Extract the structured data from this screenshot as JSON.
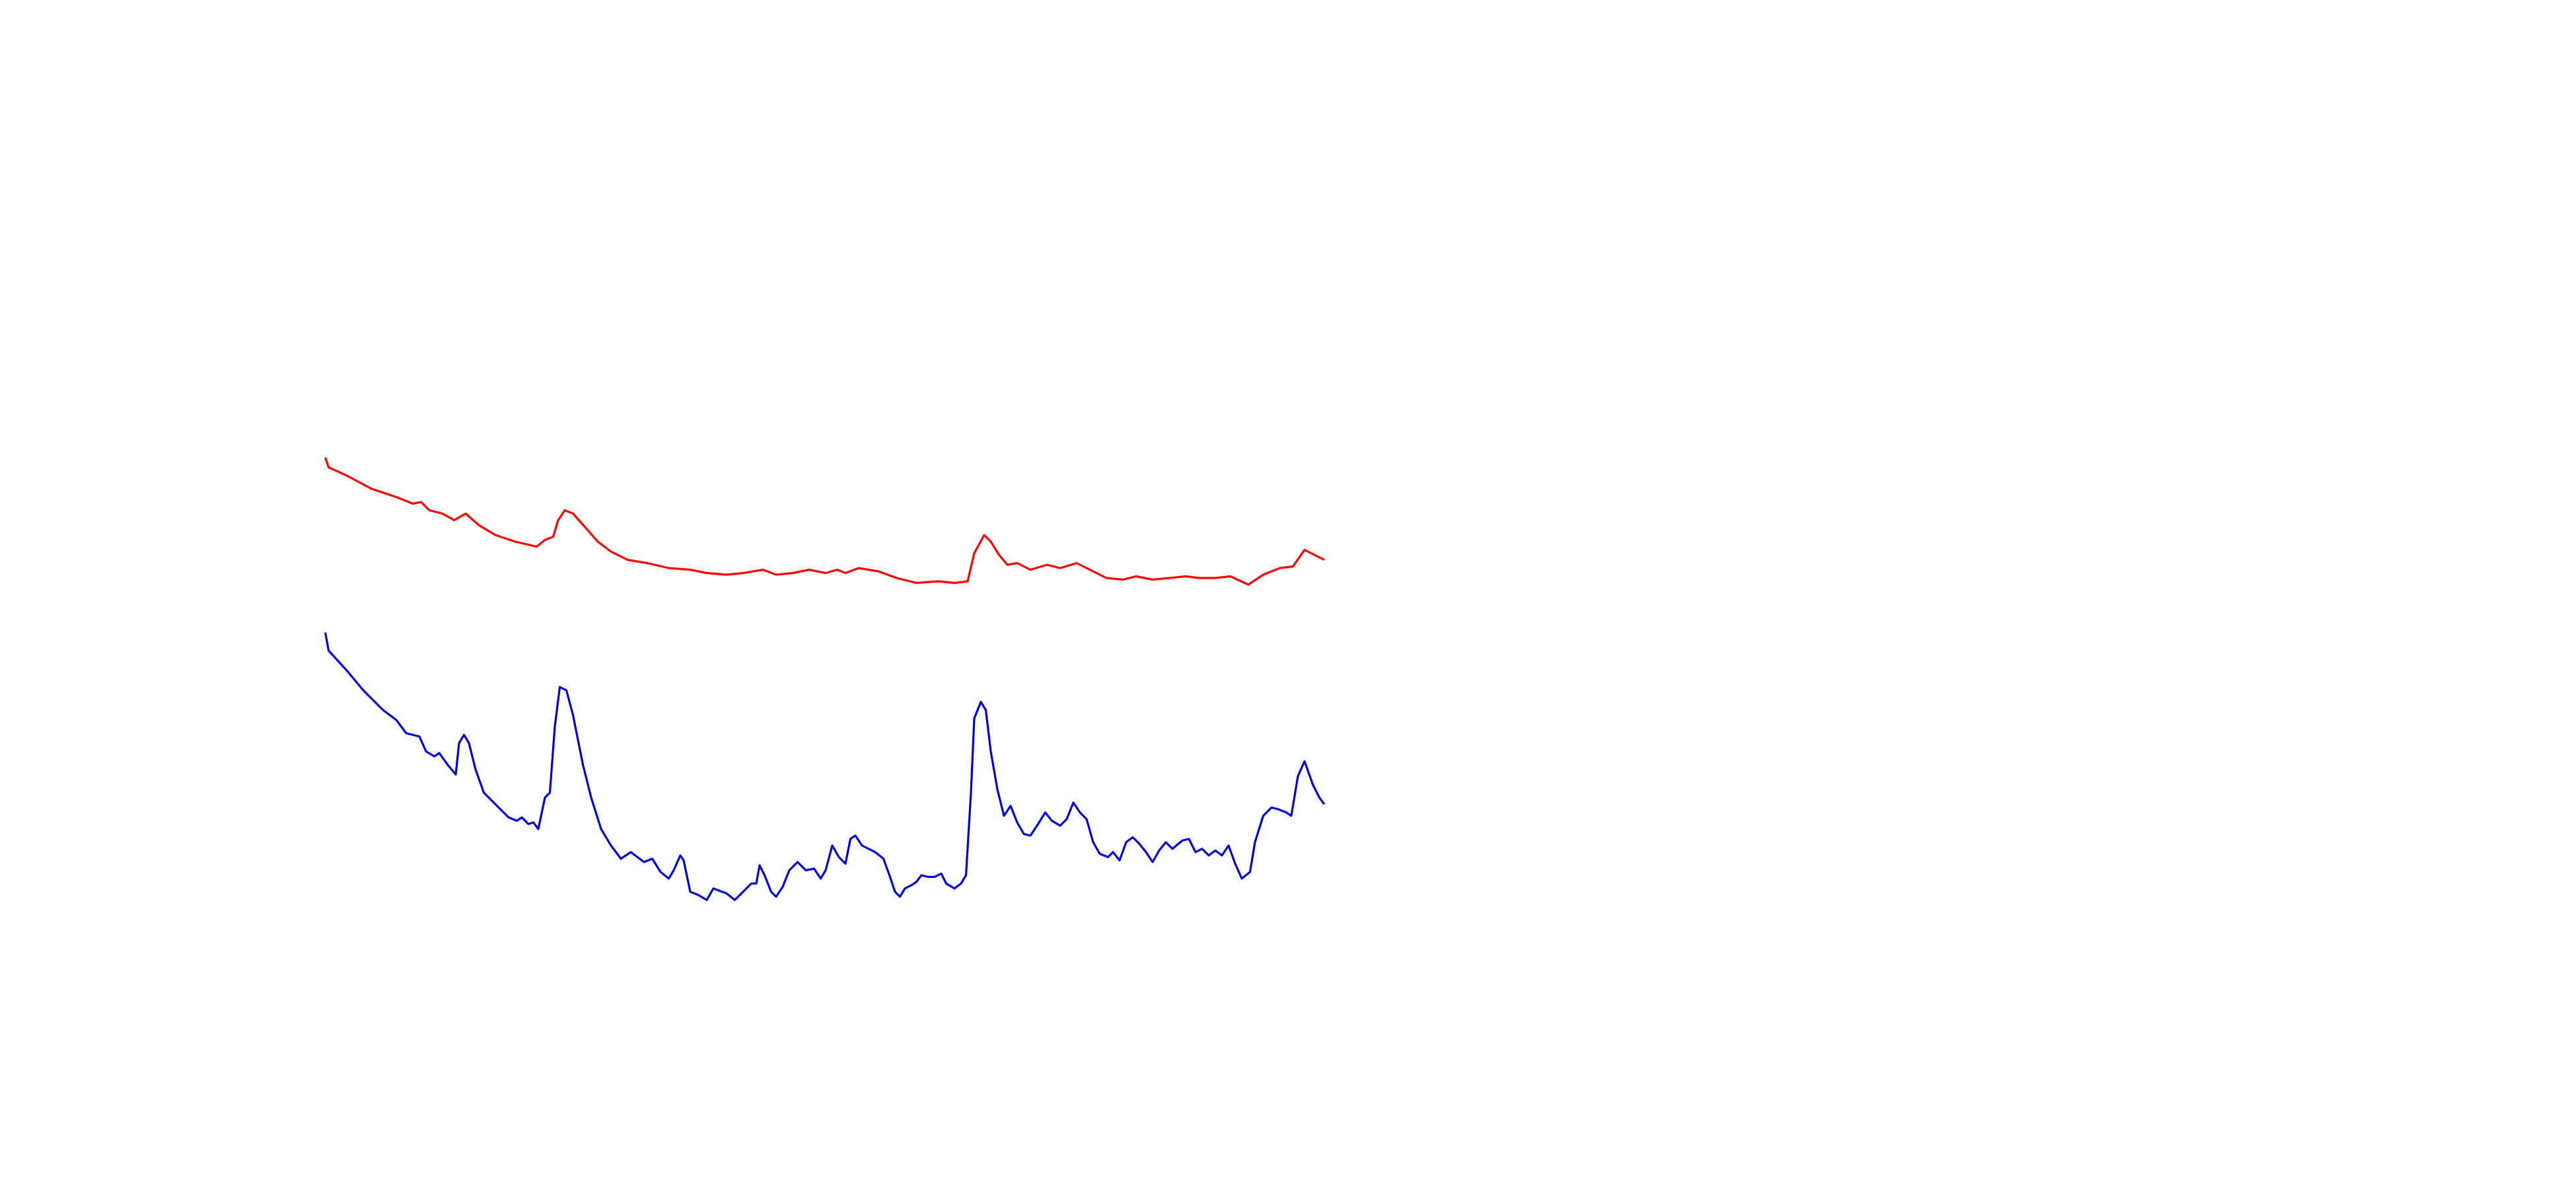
{
  "chart_data": {
    "type": "line",
    "xlim": [
      0,
      1560
    ],
    "ylim": [
      0,
      720
    ],
    "series": [
      {
        "color": "#ff0000",
        "x": [
          197,
          199,
          210,
          225,
          240,
          250,
          255,
          260,
          268,
          275,
          282,
          290,
          300,
          312,
          325,
          330,
          335,
          338,
          342,
          347,
          355,
          362,
          370,
          380,
          392,
          405,
          418,
          428,
          440,
          450,
          462,
          470,
          480,
          490,
          500,
          507,
          512,
          520,
          532,
          543,
          555,
          568,
          578,
          586,
          590,
          596,
          600,
          605,
          610,
          616,
          624,
          634,
          642,
          652,
          660,
          670,
          680,
          688,
          698,
          708,
          718,
          726,
          736,
          745,
          756,
          765,
          775,
          783,
          790,
          796,
          802
        ],
        "values": [
          443,
          437,
          432,
          424,
          419,
          415,
          416,
          411,
          409,
          405,
          409,
          402,
          396,
          392,
          389,
          393,
          395,
          405,
          411,
          409,
          400,
          392,
          386,
          381,
          379,
          376,
          375,
          373,
          372,
          373,
          375,
          372,
          373,
          375,
          373,
          375,
          373,
          376,
          374,
          370,
          367,
          368,
          367,
          368,
          385,
          396,
          392,
          384,
          378,
          379,
          375,
          378,
          376,
          379,
          375,
          370,
          369,
          371,
          369,
          370,
          371,
          370,
          370,
          371,
          366,
          372,
          376,
          377,
          387,
          384,
          381
        ]
      },
      {
        "color": "#0000dd",
        "x": [
          197,
          199,
          210,
          220,
          232,
          240,
          246,
          254,
          258,
          263,
          266,
          271,
          276,
          278,
          281,
          284,
          288,
          293,
          300,
          308,
          313,
          316,
          320,
          323,
          326,
          330,
          333,
          336,
          339,
          343,
          347,
          353,
          358,
          364,
          370,
          376,
          382,
          390,
          395,
          400,
          405,
          408,
          412,
          414,
          418,
          423,
          428,
          432,
          440,
          445,
          450,
          455,
          458,
          460,
          463,
          467,
          470,
          474,
          478,
          483,
          488,
          493,
          497,
          500,
          504,
          508,
          512,
          515,
          518,
          522,
          530,
          535,
          539,
          542,
          545,
          548,
          552,
          555,
          558,
          562,
          566,
          570,
          573,
          578,
          582,
          585,
          588,
          590,
          594,
          597,
          600,
          604,
          608,
          612,
          616,
          620,
          624,
          628,
          633,
          637,
          642,
          646,
          650,
          654,
          658,
          662,
          666,
          671,
          674,
          678,
          682,
          686,
          690,
          694,
          698,
          702,
          706,
          710,
          716,
          720,
          724,
          728,
          732,
          736,
          740,
          744,
          748,
          752,
          757,
          760,
          765,
          770,
          774,
          779,
          782,
          786,
          790,
          795,
          799,
          802
        ],
        "values": [
          337,
          326,
          314,
          302,
          290,
          284,
          276,
          274,
          265,
          262,
          264,
          257,
          251,
          270,
          275,
          270,
          254,
          240,
          233,
          225,
          223,
          225,
          221,
          222,
          218,
          237,
          240,
          280,
          304,
          302,
          287,
          257,
          237,
          218,
          208,
          200,
          204,
          198,
          200,
          192,
          188,
          193,
          202,
          199,
          180,
          178,
          175,
          182,
          179,
          175,
          180,
          185,
          185,
          196,
          190,
          180,
          177,
          183,
          193,
          198,
          193,
          194,
          188,
          193,
          208,
          201,
          197,
          212,
          214,
          208,
          204,
          200,
          189,
          180,
          177,
          182,
          184,
          186,
          190,
          189,
          189,
          191,
          185,
          182,
          185,
          190,
          240,
          285,
          295,
          290,
          265,
          242,
          226,
          232,
          222,
          215,
          214,
          220,
          228,
          223,
          220,
          224,
          234,
          228,
          224,
          210,
          203,
          201,
          204,
          199,
          210,
          213,
          209,
          204,
          198,
          205,
          210,
          206,
          211,
          212,
          204,
          206,
          202,
          205,
          202,
          208,
          197,
          188,
          192,
          210,
          226,
          231,
          230,
          228,
          226,
          250,
          259,
          245,
          237,
          233
        ]
      }
    ]
  }
}
